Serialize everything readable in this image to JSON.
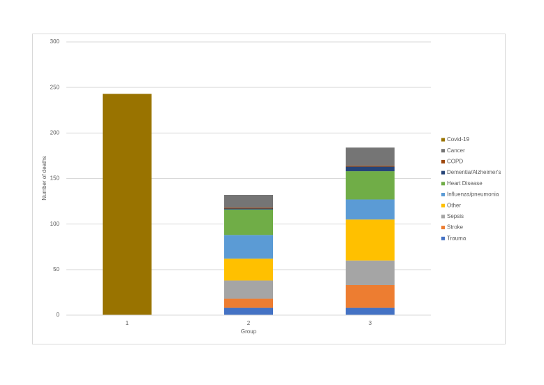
{
  "chart_data": {
    "type": "stacked-bar",
    "x_label": "Group",
    "y_label": "Number of deaths",
    "categories": [
      "1",
      "2",
      "3"
    ],
    "series": [
      {
        "name": "Trauma",
        "color": "#4472c4",
        "values": [
          0,
          8,
          8
        ]
      },
      {
        "name": "Stroke",
        "color": "#ed7d31",
        "values": [
          0,
          10,
          25
        ]
      },
      {
        "name": "Sepsis",
        "color": "#a5a5a5",
        "values": [
          0,
          20,
          27
        ]
      },
      {
        "name": "Other",
        "color": "#ffc000",
        "values": [
          0,
          24,
          45
        ]
      },
      {
        "name": "Influenza/pneumonia",
        "color": "#5b9bd5",
        "values": [
          0,
          26,
          22
        ]
      },
      {
        "name": "Heart Disease",
        "color": "#70ad47",
        "values": [
          0,
          28,
          31
        ]
      },
      {
        "name": "Dementia/Alzheimer's",
        "color": "#264478",
        "values": [
          0,
          1,
          5
        ]
      },
      {
        "name": "COPD",
        "color": "#9e480e",
        "values": [
          0,
          1,
          1
        ]
      },
      {
        "name": "Cancer",
        "color": "#757575",
        "values": [
          0,
          14,
          20
        ]
      },
      {
        "name": "Covid-19",
        "color": "#997300",
        "values": [
          243,
          0,
          0
        ]
      }
    ],
    "ylim": [
      0,
      300
    ],
    "yticks": [
      0,
      50,
      100,
      150,
      200,
      250,
      300
    ],
    "grid": true,
    "legend": "right"
  }
}
